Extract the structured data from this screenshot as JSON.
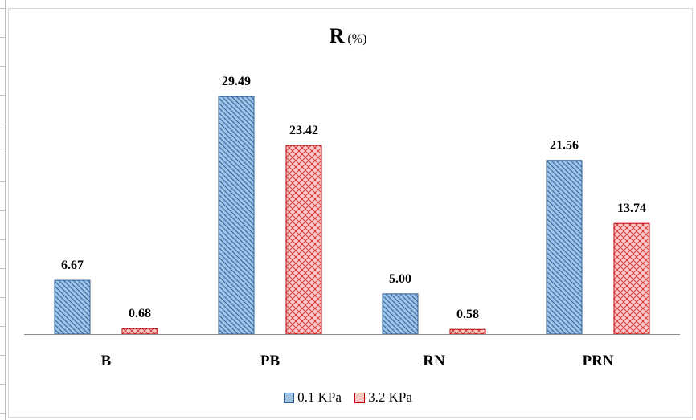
{
  "chart_data": {
    "type": "bar",
    "title": "R",
    "title_unit": "(%)",
    "categories": [
      "B",
      "PB",
      "RN",
      "PRN"
    ],
    "series": [
      {
        "name": "0.1 KPa",
        "values": [
          6.67,
          29.49,
          5.0,
          21.56
        ],
        "labels": [
          "6.67",
          "29.49",
          "5.00",
          "21.56"
        ],
        "color": "#9dc3e6",
        "stroke": "#2e5f9a",
        "pattern": "diagonal-stripes"
      },
      {
        "name": "3.2 KPa",
        "values": [
          0.68,
          23.42,
          0.58,
          13.74
        ],
        "labels": [
          "0.68",
          "23.42",
          "0.58",
          "13.74"
        ],
        "color": "#f4b6b4",
        "stroke": "#c00000",
        "pattern": "crosshatch"
      }
    ],
    "ylim": [
      0,
      33
    ],
    "grid": false,
    "legend_position": "bottom"
  }
}
